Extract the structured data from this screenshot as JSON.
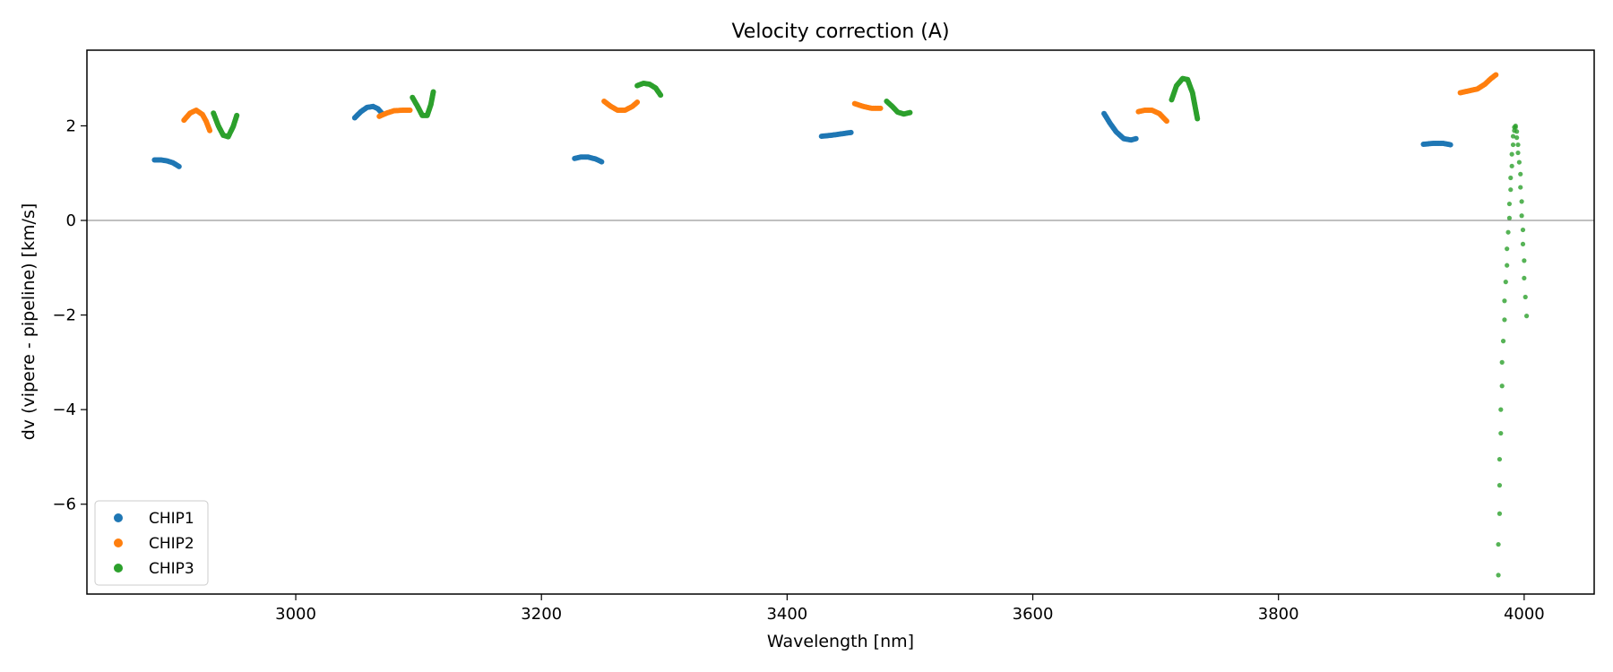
{
  "chart_data": {
    "type": "scatter",
    "title": "Velocity correction (A)",
    "xlabel": "Wavelength [nm]",
    "ylabel": "dv (vipere - pipeline) [km/s]",
    "xlim": [
      2830,
      4057
    ],
    "ylim": [
      -7.9,
      3.6
    ],
    "xticks": [
      3000,
      3200,
      3400,
      3600,
      3800,
      4000
    ],
    "xtick_labels": [
      "3000",
      "3200",
      "3400",
      "3600",
      "3800",
      "4000"
    ],
    "yticks": [
      2,
      0,
      -2,
      -4,
      -6
    ],
    "ytick_labels": [
      "2",
      "0",
      "−2",
      "−4",
      "−6"
    ],
    "reference_line_y": 0,
    "legend_position": "lower-left",
    "series": [
      {
        "name": "CHIP1",
        "color": "#1f77b4",
        "segments": [
          [
            [
              2885,
              1.28
            ],
            [
              2890,
              1.28
            ],
            [
              2895,
              1.26
            ],
            [
              2900,
              1.22
            ],
            [
              2905,
              1.14
            ]
          ],
          [
            [
              3048,
              2.17
            ],
            [
              3053,
              2.3
            ],
            [
              3058,
              2.39
            ],
            [
              3063,
              2.41
            ],
            [
              3067,
              2.36
            ],
            [
              3070,
              2.27
            ]
          ],
          [
            [
              3227,
              1.31
            ],
            [
              3232,
              1.34
            ],
            [
              3238,
              1.34
            ],
            [
              3244,
              1.3
            ],
            [
              3249,
              1.24
            ]
          ],
          [
            [
              3428,
              1.78
            ],
            [
              3436,
              1.8
            ],
            [
              3444,
              1.83
            ],
            [
              3452,
              1.86
            ]
          ],
          [
            [
              3658,
              2.26
            ],
            [
              3663,
              2.05
            ],
            [
              3668,
              1.87
            ],
            [
              3674,
              1.73
            ],
            [
              3680,
              1.7
            ],
            [
              3684,
              1.73
            ]
          ],
          [
            [
              3918,
              1.61
            ],
            [
              3926,
              1.63
            ],
            [
              3934,
              1.63
            ],
            [
              3940,
              1.6
            ]
          ]
        ]
      },
      {
        "name": "CHIP2",
        "color": "#ff7f0e",
        "segments": [
          [
            [
              2909,
              2.12
            ],
            [
              2914,
              2.27
            ],
            [
              2919,
              2.33
            ],
            [
              2924,
              2.24
            ],
            [
              2927,
              2.1
            ],
            [
              2930,
              1.9
            ]
          ],
          [
            [
              3068,
              2.2
            ],
            [
              3074,
              2.27
            ],
            [
              3080,
              2.32
            ],
            [
              3087,
              2.33
            ],
            [
              3093,
              2.33
            ]
          ],
          [
            [
              3251,
              2.52
            ],
            [
              3256,
              2.42
            ],
            [
              3262,
              2.33
            ],
            [
              3268,
              2.33
            ],
            [
              3274,
              2.41
            ],
            [
              3278,
              2.5
            ]
          ],
          [
            [
              3455,
              2.47
            ],
            [
              3462,
              2.41
            ],
            [
              3469,
              2.37
            ],
            [
              3476,
              2.37
            ]
          ],
          [
            [
              3686,
              2.3
            ],
            [
              3691,
              2.33
            ],
            [
              3697,
              2.33
            ],
            [
              3703,
              2.26
            ],
            [
              3709,
              2.1
            ]
          ],
          [
            [
              3948,
              2.7
            ],
            [
              3955,
              2.74
            ],
            [
              3962,
              2.78
            ],
            [
              3968,
              2.88
            ],
            [
              3973,
              3.0
            ],
            [
              3977,
              3.08
            ]
          ]
        ]
      },
      {
        "name": "CHIP3",
        "color": "#2ca02c",
        "segments": [
          [
            [
              2933,
              2.27
            ],
            [
              2937,
              2.0
            ],
            [
              2941,
              1.8
            ],
            [
              2945,
              1.77
            ],
            [
              2949,
              1.98
            ],
            [
              2952,
              2.22
            ]
          ],
          [
            [
              3095,
              2.6
            ],
            [
              3099,
              2.42
            ],
            [
              3103,
              2.22
            ],
            [
              3107,
              2.22
            ],
            [
              3110,
              2.45
            ],
            [
              3112,
              2.72
            ]
          ],
          [
            [
              3278,
              2.85
            ],
            [
              3283,
              2.9
            ],
            [
              3288,
              2.88
            ],
            [
              3293,
              2.8
            ],
            [
              3297,
              2.65
            ]
          ],
          [
            [
              3481,
              2.52
            ],
            [
              3486,
              2.4
            ],
            [
              3490,
              2.29
            ],
            [
              3495,
              2.25
            ],
            [
              3500,
              2.28
            ]
          ],
          [
            [
              3713,
              2.55
            ],
            [
              3717,
              2.85
            ],
            [
              3722,
              3.0
            ],
            [
              3726,
              2.98
            ],
            [
              3730,
              2.7
            ],
            [
              3734,
              2.15
            ]
          ],
          [
            [
              3979,
              -7.5
            ],
            [
              3979,
              -6.85
            ],
            [
              3980,
              -6.2
            ],
            [
              3980,
              -5.6
            ],
            [
              3980,
              -5.05
            ],
            [
              3981,
              -4.5
            ],
            [
              3981,
              -4.0
            ],
            [
              3982,
              -3.5
            ],
            [
              3982,
              -3.0
            ],
            [
              3983,
              -2.55
            ],
            [
              3984,
              -2.1
            ],
            [
              3984,
              -1.7
            ],
            [
              3985,
              -1.3
            ],
            [
              3986,
              -0.95
            ],
            [
              3986,
              -0.6
            ],
            [
              3987,
              -0.25
            ],
            [
              3988,
              0.05
            ],
            [
              3988,
              0.35
            ],
            [
              3989,
              0.65
            ],
            [
              3989,
              0.9
            ],
            [
              3990,
              1.15
            ],
            [
              3990,
              1.4
            ],
            [
              3991,
              1.6
            ],
            [
              3991,
              1.78
            ],
            [
              3992,
              1.9
            ],
            [
              3992,
              1.97
            ],
            [
              3993,
              2.0
            ],
            [
              3993,
              1.97
            ],
            [
              3994,
              1.88
            ],
            [
              3994,
              1.75
            ],
            [
              3995,
              1.6
            ],
            [
              3995,
              1.43
            ],
            [
              3996,
              1.23
            ],
            [
              3997,
              0.98
            ],
            [
              3997,
              0.7
            ],
            [
              3998,
              0.4
            ],
            [
              3998,
              0.1
            ],
            [
              3999,
              -0.2
            ],
            [
              3999,
              -0.5
            ],
            [
              4000,
              -0.85
            ],
            [
              4000,
              -1.22
            ],
            [
              4001,
              -1.62
            ],
            [
              4002,
              -2.02
            ]
          ]
        ]
      }
    ]
  }
}
